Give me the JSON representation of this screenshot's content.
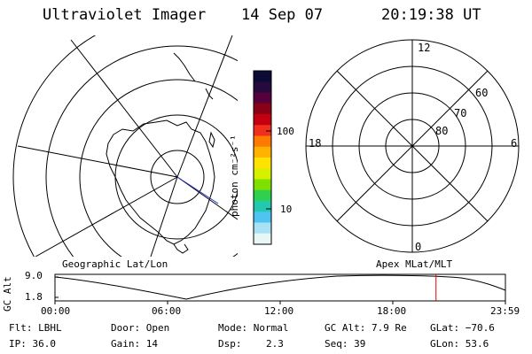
{
  "header": {
    "instrument": "Ultraviolet Imager",
    "date": "14 Sep 07",
    "time": "20:19:38 UT"
  },
  "colorbar": {
    "unit_label": "photon cm⁻²s⁻¹",
    "ticks": [
      "100",
      "10"
    ],
    "colors": [
      "#0b0b35",
      "#240a3d",
      "#55003a",
      "#8a0014",
      "#c40010",
      "#f0301a",
      "#ff7a00",
      "#ffb300",
      "#ffe200",
      "#d7f000",
      "#7fe000",
      "#2fd050",
      "#22c8b0",
      "#4dc4f2",
      "#a9e2f5",
      "#e9f6f6"
    ]
  },
  "geo_panel": {
    "label": "Geographic Lat/Lon"
  },
  "polar_panel": {
    "label": "Apex MLat/MLT",
    "mlt_labels": {
      "top": "12",
      "left": "18",
      "right": "6",
      "bottom": "0"
    },
    "lat_labels": [
      "60",
      "70",
      "80"
    ]
  },
  "altitude_plot": {
    "ylabel": "GC Alt",
    "yticks": [
      "9.0",
      "1.8"
    ],
    "xticks": [
      "00:00",
      "06:00",
      "12:00",
      "18:00",
      "23:59"
    ],
    "marker_time_fraction": 0.846,
    "marker_color": "#e00000"
  },
  "info": {
    "filter": "Flt: LBHL",
    "ip": "IP: 36.0",
    "door": "Door: Open",
    "gain": "Gain: 14",
    "mode": "Mode: Normal",
    "dsp_label": "Dsp:",
    "dsp_value": "2.3",
    "gc_alt": "GC Alt: 7.9 Re",
    "seq": "Seq: 39",
    "glat": "GLat: −70.6",
    "glon": "GLon:  53.6"
  }
}
